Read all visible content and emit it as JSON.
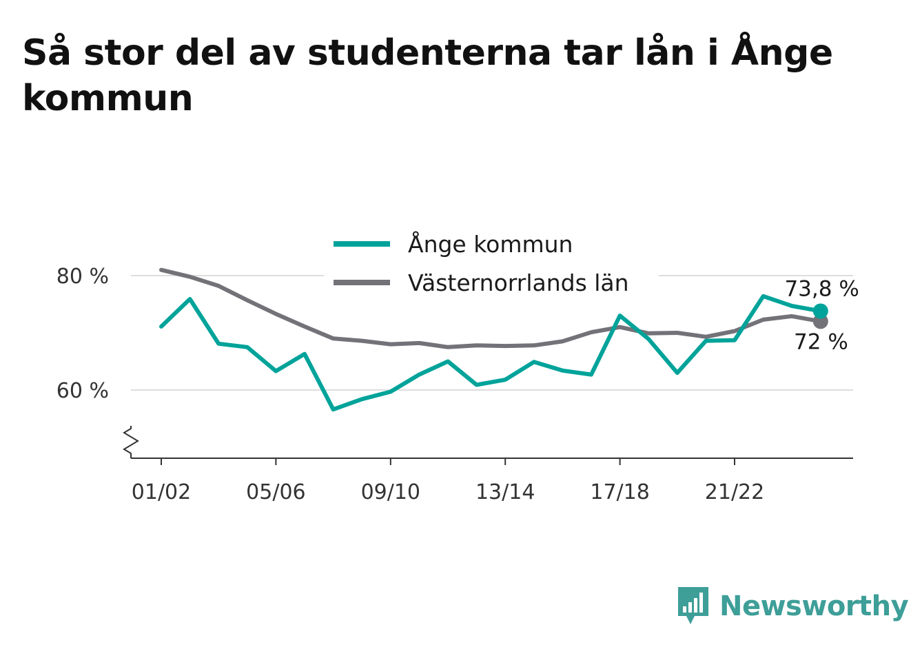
{
  "title": "Så stor del av studenterna tar lån i Ånge kommun",
  "colors": {
    "ange": "#00a39a",
    "lan": "#737278",
    "grid": "#dddddd",
    "axis": "#333333",
    "brand": "#3e9e98"
  },
  "brand": {
    "name": "Newsworthy",
    "icon": "bar-chart-speech-bubble-icon"
  },
  "chart_data": {
    "type": "line",
    "title": "Så stor del av studenterna tar lån i Ånge kommun",
    "xlabel": "",
    "ylabel": "",
    "ylim": [
      48,
      90
    ],
    "y_ticks": [
      60,
      80
    ],
    "y_tick_labels": [
      "60 %",
      "80 %"
    ],
    "y_axis_break": true,
    "grid": true,
    "legend": "top-center",
    "x_tick_labels": [
      "01/02",
      "05/06",
      "09/10",
      "13/14",
      "17/18",
      "21/22"
    ],
    "x": [
      "01/02",
      "02/03",
      "03/04",
      "04/05",
      "05/06",
      "06/07",
      "07/08",
      "08/09",
      "09/10",
      "10/11",
      "11/12",
      "12/13",
      "13/14",
      "14/15",
      "15/16",
      "16/17",
      "17/18",
      "18/19",
      "19/20",
      "20/21",
      "21/22",
      "22/23",
      "23/24",
      "24/25"
    ],
    "series": [
      {
        "name": "Ånge kommun",
        "color": "#00a39a",
        "end_label": "73,8 %",
        "values": [
          71.1,
          75.9,
          68.1,
          67.5,
          63.3,
          66.3,
          56.6,
          58.4,
          59.7,
          62.7,
          65.0,
          60.9,
          61.8,
          64.9,
          63.4,
          62.7,
          73.0,
          68.9,
          63.0,
          68.6,
          68.7,
          76.4,
          74.7,
          73.8
        ]
      },
      {
        "name": "Västernorrlands län",
        "color": "#737278",
        "end_label": "72 %",
        "values": [
          81.0,
          79.8,
          78.2,
          75.7,
          73.3,
          71.1,
          69.0,
          68.6,
          68.0,
          68.2,
          67.5,
          67.8,
          67.7,
          67.8,
          68.5,
          70.1,
          71.0,
          69.9,
          70.0,
          69.3,
          70.3,
          72.3,
          72.9,
          72.0
        ]
      }
    ]
  }
}
